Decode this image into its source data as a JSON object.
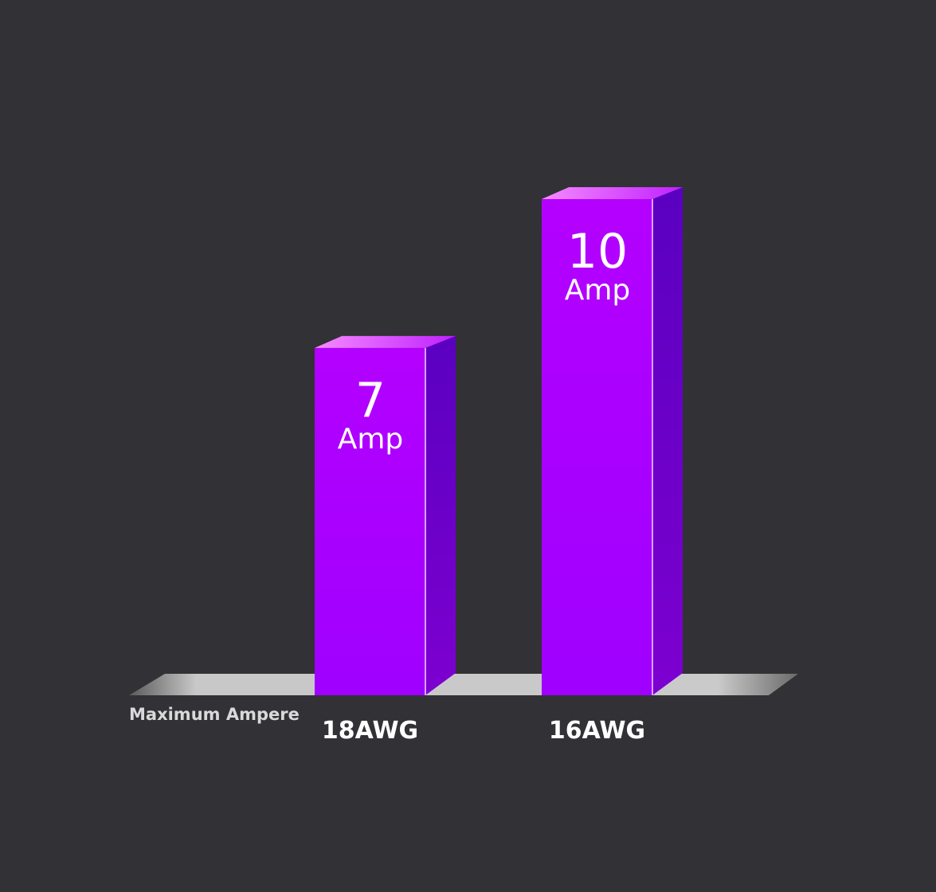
{
  "chart_data": {
    "type": "bar",
    "categories": [
      "18AWG",
      "16AWG"
    ],
    "values": [
      7,
      10
    ],
    "value_labels": [
      {
        "number": "7",
        "unit": "Amp"
      },
      {
        "number": "10",
        "unit": "Amp"
      }
    ],
    "title": "",
    "xlabel": "Maximum Ampere",
    "ylabel": "",
    "ylim": [
      0,
      10
    ],
    "grid": false,
    "legend": "none",
    "colors": {
      "background": "#323136",
      "bar_front": "#a600ff",
      "bar_side": "#5a00b8",
      "bar_top": "#f070ff",
      "floor": "#c4c4c4",
      "text": "#ffffff"
    }
  }
}
